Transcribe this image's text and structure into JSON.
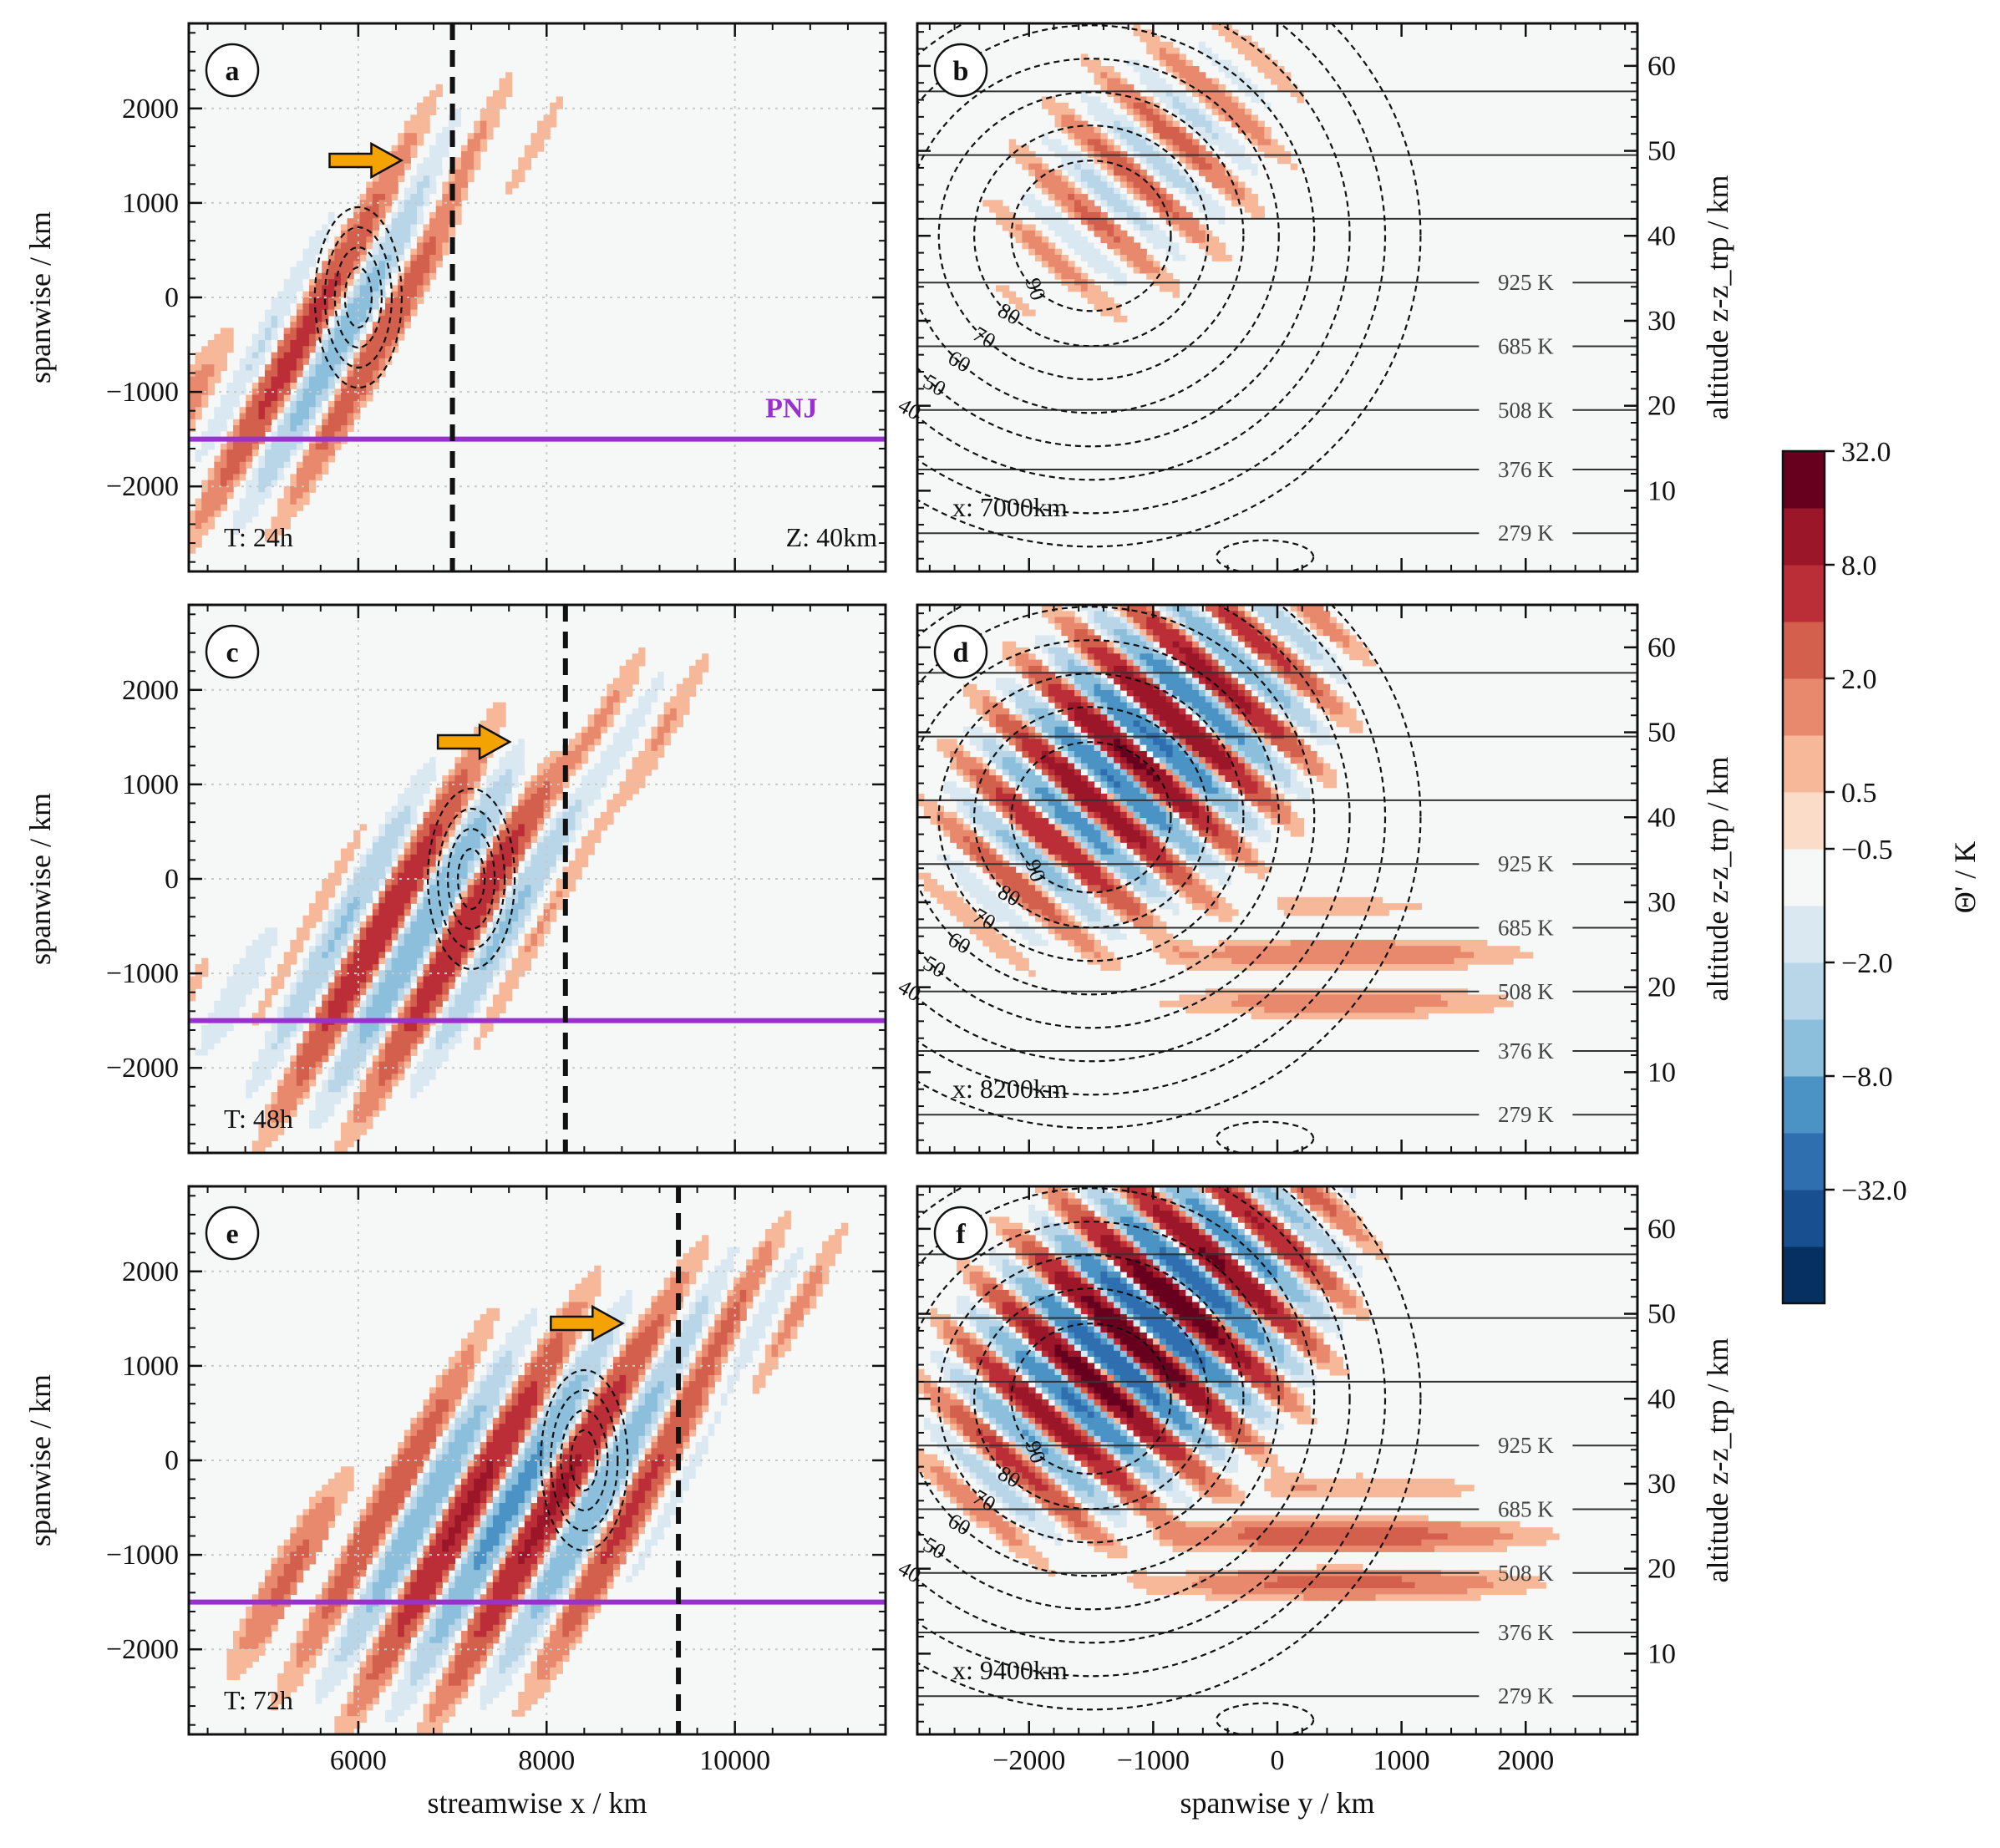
{
  "chart_data": {
    "type": "heatmap",
    "colorbar": {
      "label": "Θ' / K",
      "tick_labels": [
        "32.0",
        "8.0",
        "2.0",
        "0.5",
        "−0.5",
        "−2.0",
        "−8.0",
        "−32.0"
      ],
      "levels": [
        -128,
        -64,
        -32,
        -16,
        -8,
        -4,
        -2,
        -1,
        -0.5,
        0.5,
        1,
        2,
        4,
        8,
        16,
        32,
        64,
        128
      ],
      "colors": [
        "#053061",
        "#174f91",
        "#2f6fb0",
        "#4a93c4",
        "#8cbfdc",
        "#b8d6e8",
        "#d9e8f1",
        "#f6f7f7",
        "#fbdcc8",
        "#f6b898",
        "#e8896e",
        "#d35f4d",
        "#bb2e38",
        "#9a1628",
        "#67001f"
      ]
    },
    "panels": [
      {
        "label": "a",
        "view": "horizontal",
        "time_label": "T: 24h",
        "level_label": "Z: 40km",
        "xlabel": "",
        "ylabel": "spanwise / km",
        "xlim": [
          4200,
          11600
        ],
        "ylim": [
          -2900,
          2900
        ],
        "xticks": [
          6000,
          8000,
          10000
        ],
        "xtick_labels": [],
        "yticks": [
          -2000,
          -1000,
          0,
          1000,
          2000
        ],
        "ytick_labels": [
          "−2000",
          "−1000",
          "0",
          "1000",
          "2000"
        ],
        "pnj_y": -1500,
        "pnj_label": "PNJ",
        "section_x": 7000,
        "vortex": {
          "x": 6000,
          "y": 0
        },
        "arrow": {
          "x": 6050,
          "y": 1450
        },
        "wave": {
          "amp": 6,
          "lead_x": 6800,
          "nb": 4
        }
      },
      {
        "label": "b",
        "view": "vertical",
        "section_label": "x: 7000km",
        "xlabel": "",
        "ylabel": "altitude z-z_trp / km",
        "xlim": [
          -2900,
          2900
        ],
        "ylim": [
          0.5,
          65
        ],
        "xticks": [
          -2000,
          -1000,
          0,
          1000,
          2000
        ],
        "xtick_labels": [],
        "yticks": [
          10,
          20,
          30,
          40,
          50,
          60
        ],
        "ytick_labels": [
          "10",
          "20",
          "30",
          "40",
          "50",
          "60"
        ],
        "isentropes": [
          {
            "z": 5,
            "label": "279 K"
          },
          {
            "z": 12.5,
            "label": "376 K"
          },
          {
            "z": 19.5,
            "label": "508 K"
          },
          {
            "z": 27,
            "label": "685 K"
          },
          {
            "z": 34.5,
            "label": "925 K"
          },
          {
            "z": 42,
            "label": ""
          },
          {
            "z": 49.5,
            "label": ""
          },
          {
            "z": 57,
            "label": ""
          }
        ],
        "contour_labels": [
          "40",
          "50",
          "60",
          "70",
          "80",
          "90"
        ],
        "wave": {
          "amp": 3
        }
      },
      {
        "label": "c",
        "view": "horizontal",
        "time_label": "T: 48h",
        "level_label": "",
        "xlabel": "",
        "ylabel": "spanwise / km",
        "xlim": [
          4200,
          11600
        ],
        "ylim": [
          -2900,
          2900
        ],
        "xticks": [
          6000,
          8000,
          10000
        ],
        "xtick_labels": [],
        "yticks": [
          -2000,
          -1000,
          0,
          1000,
          2000
        ],
        "ytick_labels": [
          "−2000",
          "−1000",
          "0",
          "1000",
          "2000"
        ],
        "pnj_y": -1500,
        "pnj_label": "",
        "section_x": 8200,
        "vortex": {
          "x": 7200,
          "y": 0
        },
        "arrow": {
          "x": 7200,
          "y": 1450
        },
        "wave": {
          "amp": 8,
          "lead_x": 8300,
          "nb": 6
        }
      },
      {
        "label": "d",
        "view": "vertical",
        "section_label": "x: 8200km",
        "xlabel": "",
        "ylabel": "altitude z-z_trp / km",
        "xlim": [
          -2900,
          2900
        ],
        "ylim": [
          0.5,
          65
        ],
        "xticks": [
          -2000,
          -1000,
          0,
          1000,
          2000
        ],
        "xtick_labels": [],
        "yticks": [
          10,
          20,
          30,
          40,
          50,
          60
        ],
        "ytick_labels": [
          "10",
          "20",
          "30",
          "40",
          "50",
          "60"
        ],
        "isentropes": [
          {
            "z": 5,
            "label": "279 K"
          },
          {
            "z": 12.5,
            "label": "376 K"
          },
          {
            "z": 19.5,
            "label": "508 K"
          },
          {
            "z": 27,
            "label": "685 K"
          },
          {
            "z": 34.5,
            "label": "925 K"
          },
          {
            "z": 42,
            "label": ""
          },
          {
            "z": 49.5,
            "label": ""
          },
          {
            "z": 57,
            "label": ""
          }
        ],
        "contour_labels": [
          "40",
          "50",
          "60",
          "70",
          "80",
          "90"
        ],
        "wave": {
          "amp": 18
        }
      },
      {
        "label": "e",
        "view": "horizontal",
        "time_label": "T: 72h",
        "level_label": "",
        "xlabel": "streamwise x / km",
        "ylabel": "spanwise / km",
        "xlim": [
          4200,
          11600
        ],
        "ylim": [
          -2900,
          2900
        ],
        "xticks": [
          6000,
          8000,
          10000
        ],
        "xtick_labels": [
          "6000",
          "8000",
          "10000"
        ],
        "yticks": [
          -2000,
          -1000,
          0,
          1000,
          2000
        ],
        "ytick_labels": [
          "−2000",
          "−1000",
          "0",
          "1000",
          "2000"
        ],
        "pnj_y": -1500,
        "pnj_label": "",
        "section_x": 9400,
        "vortex": {
          "x": 8400,
          "y": 0
        },
        "arrow": {
          "x": 8400,
          "y": 1450
        },
        "wave": {
          "amp": 10,
          "lead_x": 9700,
          "nb": 8
        }
      },
      {
        "label": "f",
        "view": "vertical",
        "section_label": "x: 9400km",
        "xlabel": "spanwise y / km",
        "ylabel": "altitude z-z_trp / km",
        "xlim": [
          -2900,
          2900
        ],
        "ylim": [
          0.5,
          65
        ],
        "xticks": [
          -2000,
          -1000,
          0,
          1000,
          2000
        ],
        "xtick_labels": [
          "−2000",
          "−1000",
          "0",
          "1000",
          "2000"
        ],
        "yticks": [
          10,
          20,
          30,
          40,
          50,
          60
        ],
        "ytick_labels": [
          "10",
          "20",
          "30",
          "40",
          "50",
          "60"
        ],
        "isentropes": [
          {
            "z": 5,
            "label": "279 K"
          },
          {
            "z": 12.5,
            "label": "376 K"
          },
          {
            "z": 19.5,
            "label": "508 K"
          },
          {
            "z": 27,
            "label": "685 K"
          },
          {
            "z": 34.5,
            "label": "925 K"
          },
          {
            "z": 42,
            "label": ""
          },
          {
            "z": 49.5,
            "label": ""
          },
          {
            "z": 57,
            "label": ""
          }
        ],
        "contour_labels": [
          "40",
          "50",
          "60",
          "70",
          "80",
          "90"
        ],
        "wave": {
          "amp": 28
        }
      }
    ]
  }
}
